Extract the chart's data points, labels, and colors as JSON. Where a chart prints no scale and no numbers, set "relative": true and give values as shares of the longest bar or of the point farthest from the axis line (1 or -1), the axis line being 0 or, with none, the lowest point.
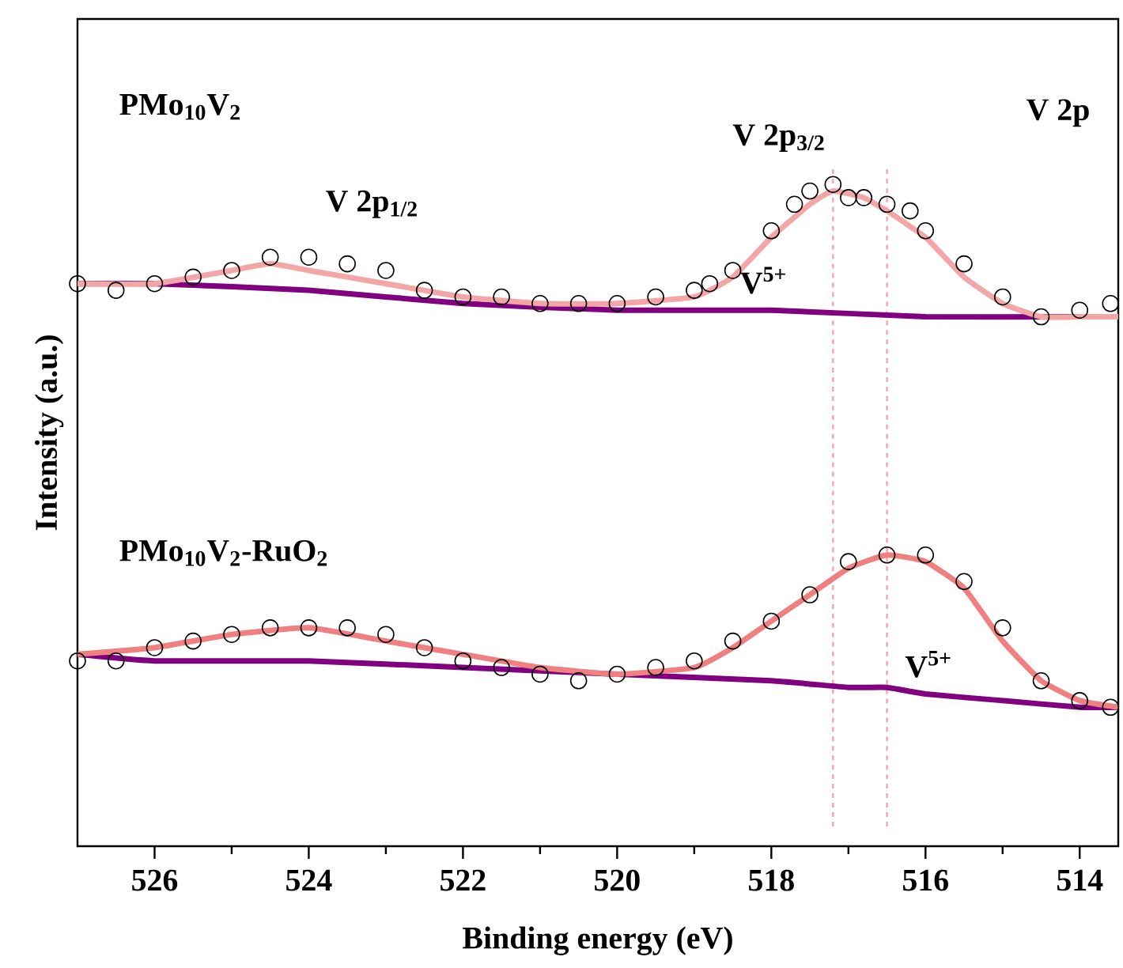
{
  "chart_data": {
    "type": "line",
    "relative": true,
    "xlabel": "Binding energy (eV)",
    "ylabel": "Intensity (a.u.)",
    "xlim": [
      527,
      513.5
    ],
    "xticks": [
      526,
      524,
      522,
      520,
      518,
      516,
      514,
      {
        "value": 525,
        "label": null
      },
      {
        "value": 523,
        "label": null
      },
      {
        "value": 521,
        "label": null
      },
      {
        "value": 519,
        "label": null
      },
      {
        "value": 517,
        "label": null
      },
      {
        "value": 515,
        "label": null
      }
    ],
    "grid": false,
    "tick_labels": "x",
    "annotations": [
      "PMo$_{10}$V$_{2}$",
      "PMo$_{10}$V$_{2}$-RuO$_{2}$",
      "V 2p",
      "V 2p$_{3/2}$",
      "V 2p$_{1/2}$",
      "V$^{5+}$",
      "V$^{5+}$"
    ],
    "ref_lines": [
      {
        "axis": "x",
        "value": 517.2,
        "color": "#f4a6a6",
        "line_style": "dashed"
      },
      {
        "axis": "x",
        "value": 516.5,
        "color": "#f4a6a6",
        "line_style": "dashed"
      }
    ],
    "series": [
      {
        "color": "#800080",
        "marker": "none",
        "x": [
          527,
          526,
          524,
          522,
          520,
          518,
          516,
          514,
          513.5
        ],
        "values": [
          0.85,
          0.85,
          0.84,
          0.82,
          0.81,
          0.81,
          0.8,
          0.8,
          0.8
        ]
      },
      {
        "type": "scatter",
        "color": "#000000",
        "marker": "circle",
        "x": [
          527,
          526.5,
          526,
          525.5,
          525,
          524.5,
          524,
          523.5,
          523,
          522.5,
          522,
          521.5,
          521,
          520.5,
          520,
          519.5,
          519,
          518.8,
          518.5,
          518,
          517.7,
          517.5,
          517.2,
          517,
          516.8,
          516.5,
          516.2,
          516,
          515.5,
          515,
          514.5,
          514,
          513.6
        ],
        "values": [
          0.85,
          0.84,
          0.85,
          0.86,
          0.87,
          0.89,
          0.89,
          0.88,
          0.87,
          0.84,
          0.83,
          0.83,
          0.82,
          0.82,
          0.82,
          0.83,
          0.84,
          0.85,
          0.87,
          0.93,
          0.97,
          0.99,
          1.0,
          0.98,
          0.98,
          0.97,
          0.96,
          0.93,
          0.88,
          0.83,
          0.8,
          0.81,
          0.82
        ]
      },
      {
        "color": "#f4a6a6",
        "marker": "none",
        "x": [
          527,
          526,
          525,
          524.5,
          524,
          523,
          522,
          521,
          520,
          519,
          518.5,
          518,
          517.5,
          517.2,
          516.8,
          516.5,
          516,
          515.5,
          515,
          514.5,
          514,
          513.5
        ],
        "values": [
          0.85,
          0.85,
          0.87,
          0.88,
          0.87,
          0.85,
          0.83,
          0.82,
          0.82,
          0.83,
          0.86,
          0.92,
          0.97,
          0.99,
          0.98,
          0.96,
          0.92,
          0.86,
          0.82,
          0.8,
          0.8,
          0.8
        ]
      },
      {
        "color": "#800080",
        "marker": "none",
        "x": [
          527,
          526,
          524,
          522,
          520,
          518,
          517,
          516.5,
          516,
          515,
          514,
          513.5
        ],
        "values": [
          0.29,
          0.28,
          0.28,
          0.27,
          0.26,
          0.25,
          0.24,
          0.24,
          0.23,
          0.22,
          0.21,
          0.21
        ]
      },
      {
        "type": "scatter",
        "color": "#000000",
        "marker": "circle",
        "x": [
          527,
          526.5,
          526,
          525.5,
          525,
          524.5,
          524,
          523.5,
          523,
          522.5,
          522,
          521.5,
          521,
          520.5,
          520,
          519.5,
          519,
          518.5,
          518,
          517.5,
          517,
          516.5,
          516,
          515.5,
          515,
          514.5,
          514,
          513.6
        ],
        "values": [
          0.28,
          0.28,
          0.3,
          0.31,
          0.32,
          0.33,
          0.33,
          0.33,
          0.32,
          0.3,
          0.28,
          0.27,
          0.26,
          0.25,
          0.26,
          0.27,
          0.28,
          0.31,
          0.34,
          0.38,
          0.43,
          0.44,
          0.44,
          0.4,
          0.33,
          0.25,
          0.22,
          0.21
        ]
      },
      {
        "color": "#f08080",
        "marker": "none",
        "x": [
          527,
          526,
          525,
          524,
          523,
          522,
          521,
          520,
          519,
          518.5,
          518,
          517.5,
          517,
          516.5,
          516,
          515.5,
          515,
          514.5,
          514,
          513.5
        ],
        "values": [
          0.29,
          0.3,
          0.32,
          0.33,
          0.31,
          0.29,
          0.27,
          0.26,
          0.27,
          0.3,
          0.34,
          0.38,
          0.42,
          0.44,
          0.43,
          0.39,
          0.31,
          0.25,
          0.22,
          0.21
        ]
      }
    ]
  }
}
